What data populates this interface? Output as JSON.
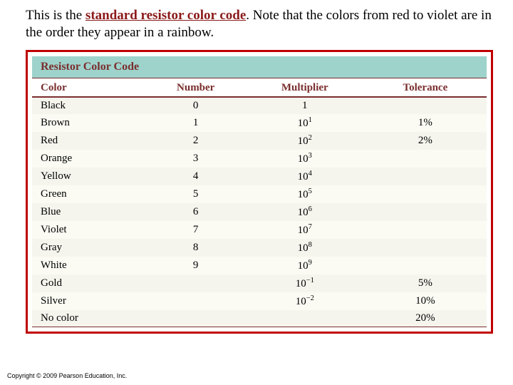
{
  "intro": {
    "pre": "This is the ",
    "emph": "standard resistor color code",
    "post": ". Note that the colors from red to violet are in the order they appear in a rainbow."
  },
  "table": {
    "title": "Resistor Color Code",
    "headers": {
      "color": "Color",
      "number": "Number",
      "multiplier": "Multiplier",
      "tolerance": "Tolerance"
    },
    "rows": [
      {
        "color": "Black",
        "number": "0",
        "mult_base": "1",
        "mult_exp": "",
        "tolerance": ""
      },
      {
        "color": "Brown",
        "number": "1",
        "mult_base": "10",
        "mult_exp": "1",
        "tolerance": "1%"
      },
      {
        "color": "Red",
        "number": "2",
        "mult_base": "10",
        "mult_exp": "2",
        "tolerance": "2%"
      },
      {
        "color": "Orange",
        "number": "3",
        "mult_base": "10",
        "mult_exp": "3",
        "tolerance": ""
      },
      {
        "color": "Yellow",
        "number": "4",
        "mult_base": "10",
        "mult_exp": "4",
        "tolerance": ""
      },
      {
        "color": "Green",
        "number": "5",
        "mult_base": "10",
        "mult_exp": "5",
        "tolerance": ""
      },
      {
        "color": "Blue",
        "number": "6",
        "mult_base": "10",
        "mult_exp": "6",
        "tolerance": ""
      },
      {
        "color": "Violet",
        "number": "7",
        "mult_base": "10",
        "mult_exp": "7",
        "tolerance": ""
      },
      {
        "color": "Gray",
        "number": "8",
        "mult_base": "10",
        "mult_exp": "8",
        "tolerance": ""
      },
      {
        "color": "White",
        "number": "9",
        "mult_base": "10",
        "mult_exp": "9",
        "tolerance": ""
      },
      {
        "color": "Gold",
        "number": "",
        "mult_base": "10",
        "mult_exp": "−1",
        "tolerance": "5%"
      },
      {
        "color": "Silver",
        "number": "",
        "mult_base": "10",
        "mult_exp": "−2",
        "tolerance": "10%"
      },
      {
        "color": "No color",
        "number": "",
        "mult_base": "",
        "mult_exp": "",
        "tolerance": "20%"
      }
    ]
  },
  "copyright": "Copyright © 2009 Pearson Education, Inc."
}
